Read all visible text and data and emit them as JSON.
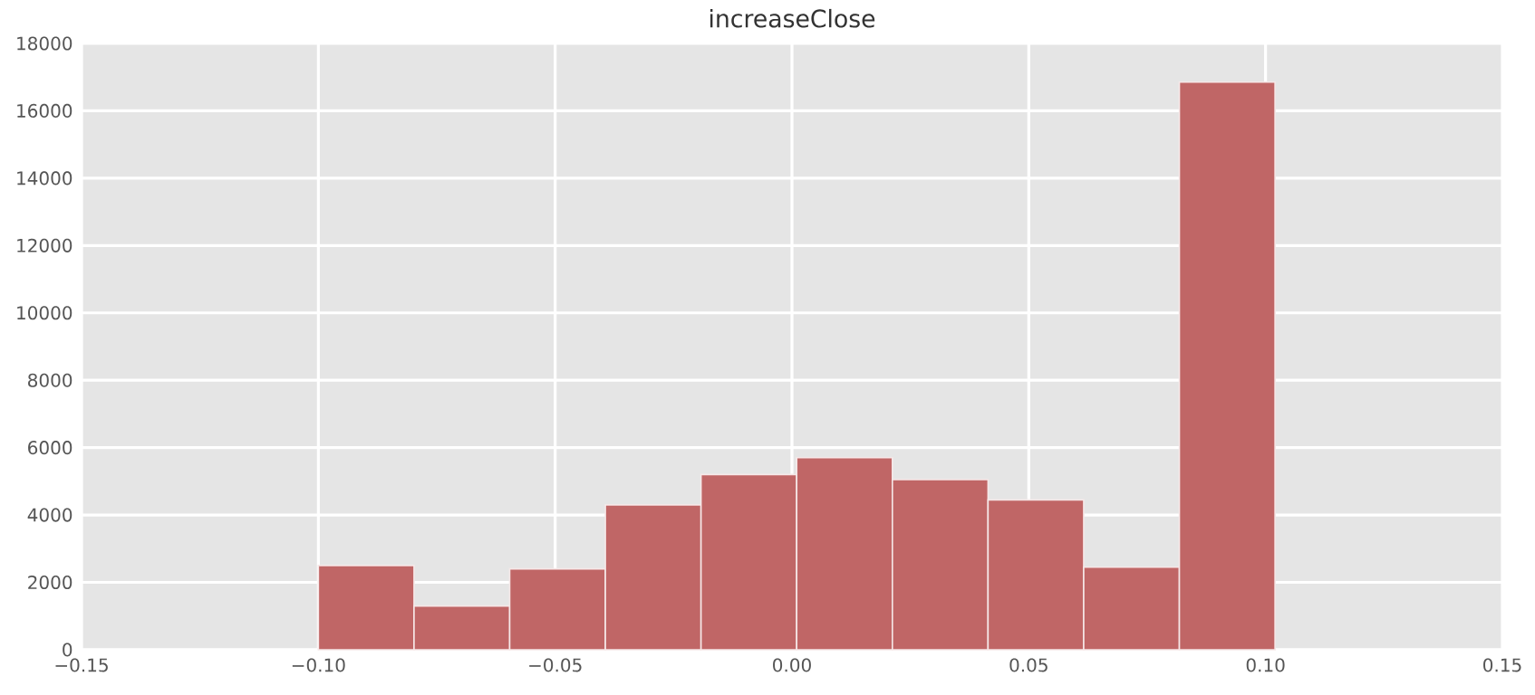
{
  "chart_data": {
    "type": "histogram",
    "title": "increaseClose",
    "bins": [
      -0.1,
      -0.0798,
      -0.0596,
      -0.0394,
      -0.0192,
      0.001,
      0.0212,
      0.0414,
      0.0616,
      0.0818,
      0.102
    ],
    "values": [
      2500,
      1300,
      2400,
      4300,
      5200,
      5700,
      5050,
      4450,
      2450,
      16850
    ],
    "color": "#c06666",
    "xlim": [
      -0.15,
      0.15
    ],
    "xticks": [
      {
        "value": -0.15,
        "label": "−0.15"
      },
      {
        "value": -0.1,
        "label": "−0.10"
      },
      {
        "value": -0.05,
        "label": "−0.05"
      },
      {
        "value": 0.0,
        "label": "0.00"
      },
      {
        "value": 0.05,
        "label": "0.05"
      },
      {
        "value": 0.1,
        "label": "0.10"
      },
      {
        "value": 0.15,
        "label": "0.15"
      }
    ],
    "ylim": [
      0,
      18000
    ],
    "yticks": [
      0,
      2000,
      4000,
      6000,
      8000,
      10000,
      12000,
      14000,
      16000,
      18000
    ],
    "grid": true
  }
}
